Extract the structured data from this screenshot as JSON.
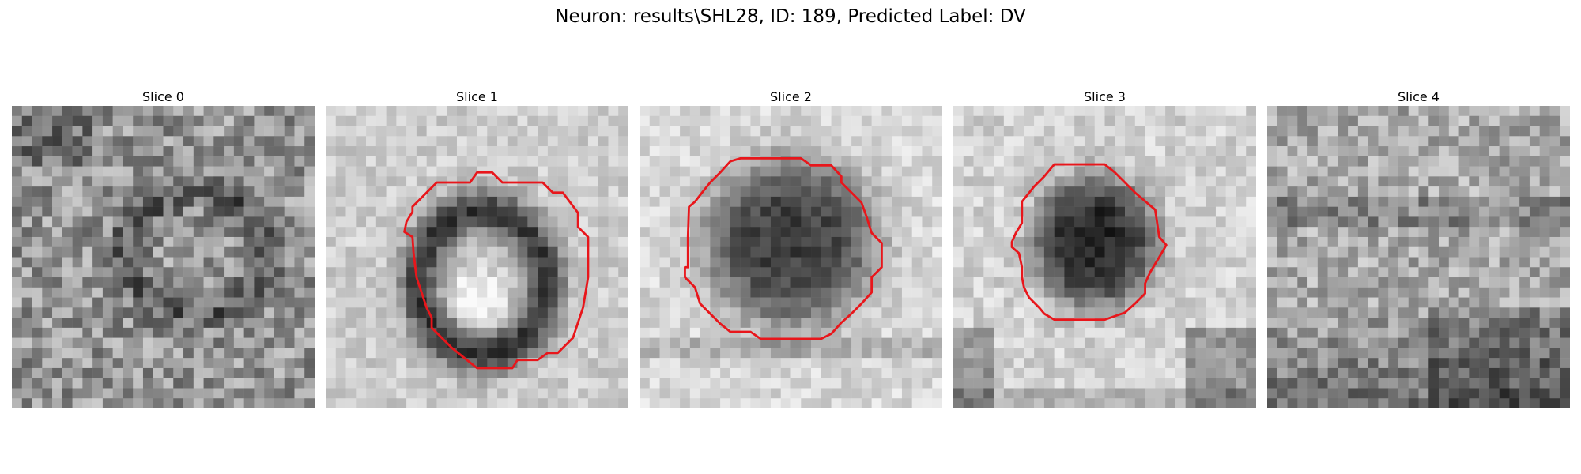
{
  "figure": {
    "title": "Neuron: results\\SHL28, ID: 189, Predicted Label: DV"
  },
  "panels": [
    {
      "title": "Slice 0",
      "has_contour": false
    },
    {
      "title": "Slice 1",
      "has_contour": true
    },
    {
      "title": "Slice 2",
      "has_contour": true
    },
    {
      "title": "Slice 3",
      "has_contour": true
    },
    {
      "title": "Slice 4",
      "has_contour": false
    }
  ],
  "colors": {
    "contour": "#e8161b",
    "background": "#ffffff"
  }
}
